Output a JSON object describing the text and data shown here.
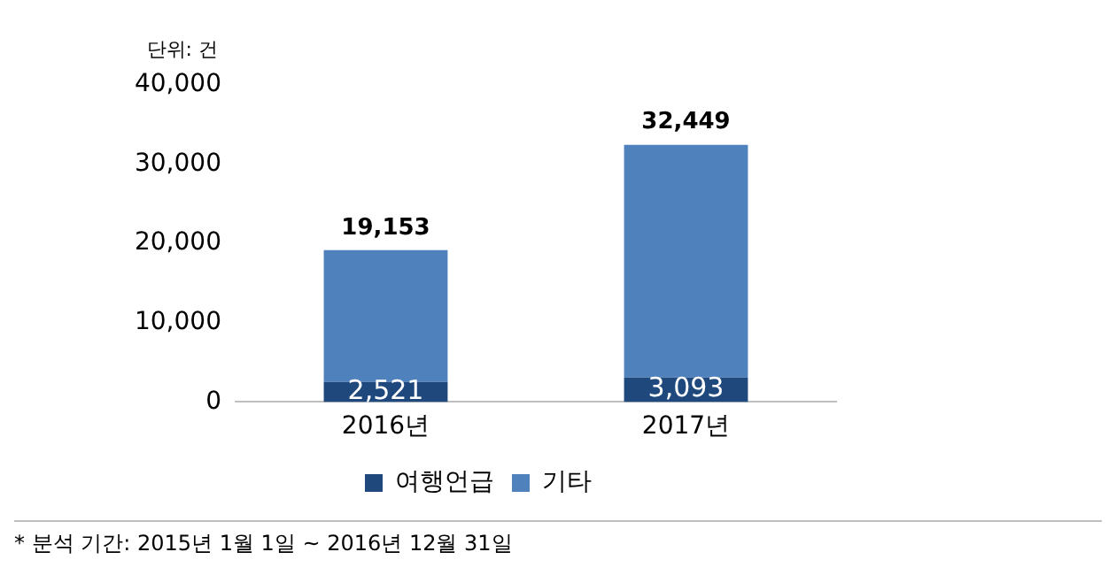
{
  "chart_data": {
    "type": "bar",
    "stacked": true,
    "ylabel": "단위: 건",
    "categories": [
      "2016년",
      "2017년"
    ],
    "series": [
      {
        "name": "여행언급",
        "color": "#1f497d",
        "values": [
          2521,
          3093
        ],
        "value_labels": [
          "2,521",
          "3,093"
        ]
      },
      {
        "name": "기타",
        "color": "#4f81bd",
        "values": [
          16632,
          29356
        ]
      }
    ],
    "totals": [
      "19,153",
      "32,449"
    ],
    "ylim": [
      0,
      40000
    ],
    "yticks": [
      {
        "value": 0,
        "label": "0"
      },
      {
        "value": 10000,
        "label": "10,000"
      },
      {
        "value": 20000,
        "label": "20,000"
      },
      {
        "value": 30000,
        "label": "30,000"
      },
      {
        "value": 40000,
        "label": "40,000"
      }
    ],
    "grid": false,
    "legend": "bottom",
    "annotations": [
      "* 분석 기간: 2015년 1월 1일 ~ 2016년 12월 31일"
    ]
  }
}
